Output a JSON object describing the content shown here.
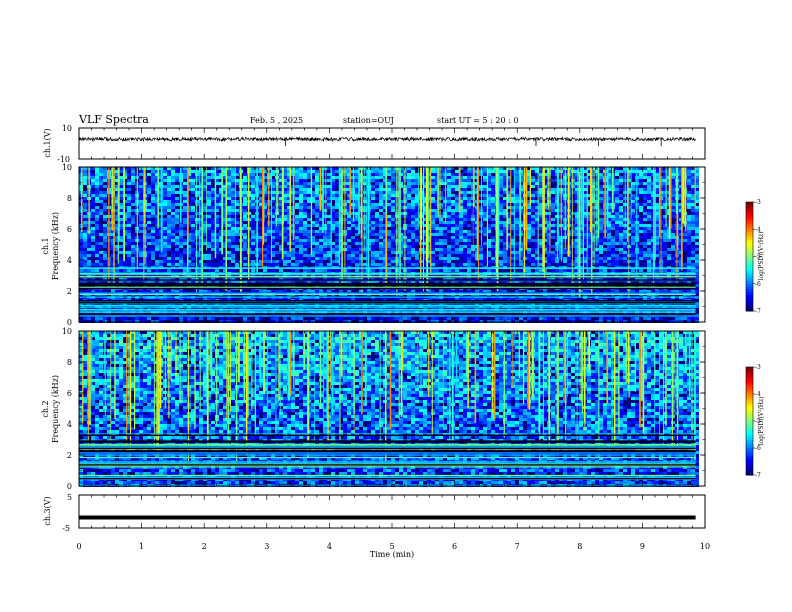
{
  "header": {
    "title": "VLF Spectra",
    "date": "Feb. 5 , 2025",
    "station": "station=OUJ",
    "start": "start UT = 5 : 20 : 0"
  },
  "chart_data": [
    {
      "type": "line",
      "ylabel": "ch.1(V)",
      "ylim": [
        -10,
        10
      ],
      "yticks": [
        "10",
        "-10"
      ],
      "baseline": 2.8,
      "spikes_at_min": [
        3.3,
        7.3,
        8.3,
        9.3
      ]
    },
    {
      "type": "heatmap",
      "ylabel_line1": "ch.1",
      "ylabel_line2": "Frequency (kHz)",
      "ylim": [
        0,
        10
      ],
      "yticks": [
        "0",
        "2",
        "4",
        "6",
        "8",
        "10"
      ],
      "colorbar": {
        "range": [
          -7,
          -3
        ],
        "ticks": [
          "-3",
          "-4",
          "-5",
          "-6",
          "-7"
        ],
        "label": "log(PSD)(V²/Hz)"
      },
      "noise_band_khz": [
        0,
        3.5
      ],
      "dominant_level": -6.5
    },
    {
      "type": "heatmap",
      "ylabel_line1": "ch.2",
      "ylabel_line2": "Frequency (kHz)",
      "ylim": [
        0,
        10
      ],
      "yticks": [
        "0",
        "2",
        "4",
        "6",
        "8",
        "10"
      ],
      "colorbar": {
        "range": [
          -7,
          -3
        ],
        "ticks": [
          "-3",
          "-4",
          "-5",
          "-6",
          "-7"
        ],
        "label": "log(PSD)(V²/Hz)"
      },
      "noise_band_khz": [
        0,
        3.5
      ],
      "dominant_level": -6.3
    },
    {
      "type": "line",
      "ylabel": "ch.3(V)",
      "ylim": [
        -5,
        5
      ],
      "yticks": [
        "5",
        "-5"
      ],
      "baseline": -1.8
    }
  ],
  "x_axis": {
    "label": "Time (min)",
    "range": [
      0,
      10
    ],
    "ticks": [
      "0",
      "1",
      "2",
      "3",
      "4",
      "5",
      "6",
      "7",
      "8",
      "9",
      "10"
    ]
  },
  "data_end_min": 9.85,
  "colors": {
    "background": "#ffffff",
    "axis": "#000000",
    "trace": "#000000"
  },
  "colormap": [
    "#00007f",
    "#0000ff",
    "#007fff",
    "#00ffff",
    "#7fff7f",
    "#ffff00",
    "#ff7f00",
    "#ff0000",
    "#7f0000"
  ]
}
